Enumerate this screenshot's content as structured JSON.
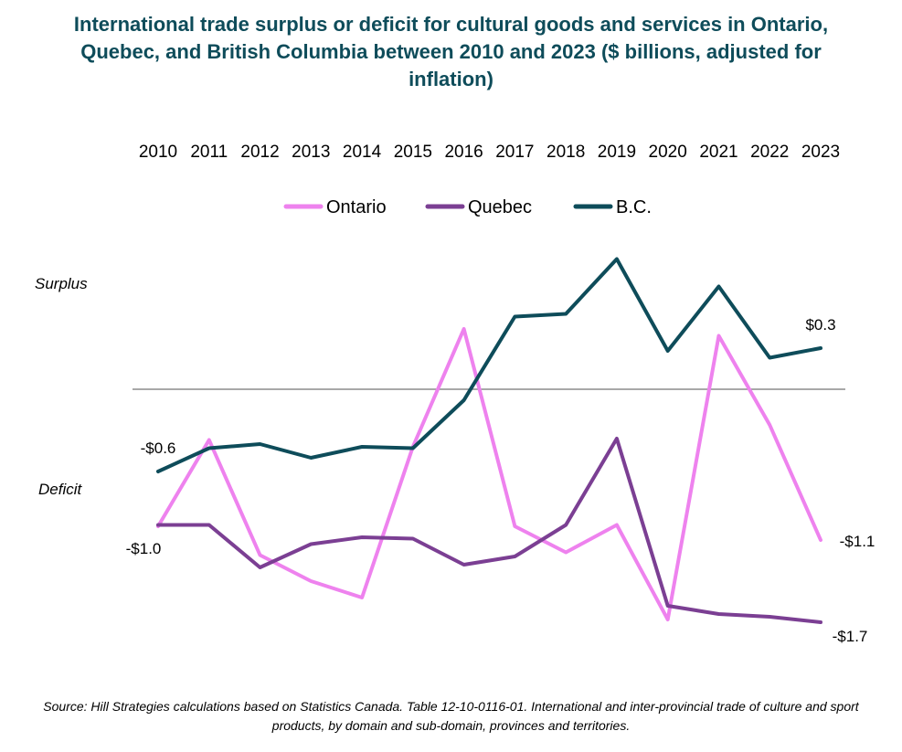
{
  "chart_data": {
    "type": "line",
    "title": "International trade surplus or deficit for cultural goods and services in Ontario, Quebec, and British Columbia between 2010 and 2023 ($ billions, adjusted for inflation)",
    "x": [
      "2010",
      "2011",
      "2012",
      "2013",
      "2014",
      "2015",
      "2016",
      "2017",
      "2018",
      "2019",
      "2020",
      "2021",
      "2022",
      "2023"
    ],
    "series": [
      {
        "name": "Ontario",
        "color": "#ee82ee",
        "values": [
          -1.0,
          -0.37,
          -1.21,
          -1.4,
          -1.52,
          -0.42,
          0.44,
          -1.0,
          -1.19,
          -0.99,
          -1.68,
          0.39,
          -0.26,
          -1.1
        ]
      },
      {
        "name": "Quebec",
        "color": "#7b3f93",
        "values": [
          -0.99,
          -0.99,
          -1.3,
          -1.13,
          -1.08,
          -1.09,
          -1.28,
          -1.22,
          -0.99,
          -0.36,
          -1.58,
          -1.64,
          -1.66,
          -1.7
        ]
      },
      {
        "name": "B.C.",
        "color": "#0e4c5a",
        "values": [
          -0.6,
          -0.43,
          -0.4,
          -0.5,
          -0.42,
          -0.43,
          -0.08,
          0.53,
          0.55,
          0.95,
          0.28,
          0.75,
          0.23,
          0.3
        ]
      }
    ],
    "ylim": [
      -1.9,
      1.1
    ],
    "zero_line": true,
    "grid": false,
    "legend_position": "top",
    "x_axis_position": "top",
    "y_annotations": [
      "Surplus",
      "Deficit"
    ],
    "data_labels": [
      {
        "text": "-$0.6",
        "series": "B.C.",
        "x": "2010"
      },
      {
        "text": "-$1.0",
        "series": "Ontario",
        "x": "2010"
      },
      {
        "text": "$0.3",
        "series": "B.C.",
        "x": "2023"
      },
      {
        "text": "-$1.1",
        "series": "Ontario",
        "x": "2023"
      },
      {
        "text": "-$1.7",
        "series": "Quebec",
        "x": "2023"
      }
    ],
    "source": "Source: Hill Strategies calculations based on Statistics Canada. Table 12-10-0116-01. International and inter-provincial trade of culture and sport products, by domain and sub-domain, provinces and territories."
  }
}
